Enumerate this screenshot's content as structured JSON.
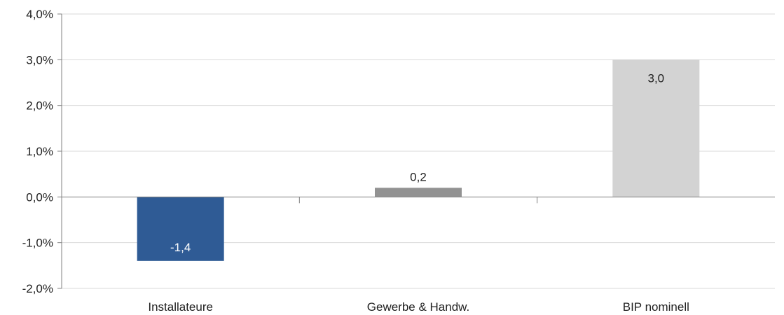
{
  "chart_data": {
    "type": "bar",
    "categories": [
      "Installateure",
      "Gewerbe & Handw.",
      "BIP nominell"
    ],
    "values": [
      -1.4,
      0.2,
      3.0
    ],
    "value_labels": [
      "-1,4",
      "0,2",
      "3,0"
    ],
    "bar_colors": [
      "#2f5b95",
      "#929292",
      "#d3d3d3"
    ],
    "value_label_colors": [
      "#ffffff",
      "#222222",
      "#222222"
    ],
    "value_label_position": [
      "inside-end",
      "outside-end",
      "inside-end"
    ],
    "ylim": [
      -2.0,
      4.0
    ],
    "yticks": [
      -2.0,
      -1.0,
      0.0,
      1.0,
      2.0,
      3.0,
      4.0
    ],
    "ytick_labels": [
      "-2,0%",
      "-1,0%",
      "0,0%",
      "1,0%",
      "2,0%",
      "3,0%",
      "4,0%"
    ],
    "grid": true,
    "grid_color": "#d9d9d9",
    "axis_color": "#808080",
    "title": "",
    "xlabel": "",
    "ylabel": "",
    "legend": "none"
  }
}
